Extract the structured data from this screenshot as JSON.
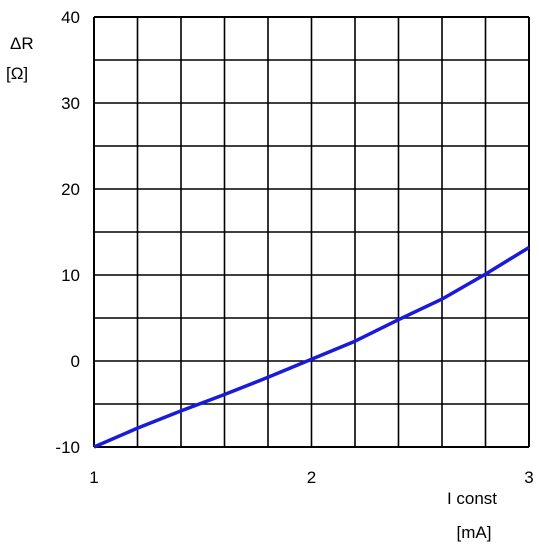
{
  "chart_data": {
    "type": "line",
    "title": "",
    "ylabel": [
      "ΔR",
      "[Ω]"
    ],
    "xlabel": [
      "I const",
      "[mA]"
    ],
    "xlim": [
      1,
      3
    ],
    "ylim": [
      -10,
      40
    ],
    "x_ticks": [
      "1",
      "2",
      "3"
    ],
    "y_ticks": [
      "-10",
      "0",
      "10",
      "20",
      "30",
      "40"
    ],
    "grid": true,
    "series": [
      {
        "color": "#1a1adb",
        "x": [
          1.0,
          1.2,
          1.4,
          1.6,
          1.8,
          2.0,
          2.2,
          2.4,
          2.6,
          2.8,
          3.0
        ],
        "y": [
          -10.0,
          -7.8,
          -5.8,
          -3.9,
          -1.9,
          0.2,
          2.3,
          4.8,
          7.2,
          10.1,
          13.2
        ]
      }
    ]
  }
}
